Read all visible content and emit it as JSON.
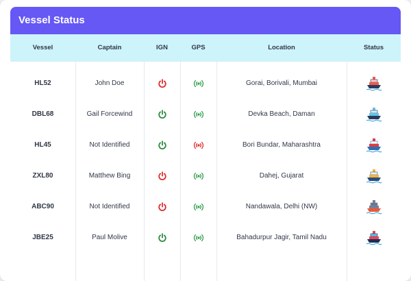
{
  "card": {
    "title": "Vessel Status"
  },
  "columns": [
    "Vessel",
    "Captain",
    "IGN",
    "GPS",
    "Location",
    "Status"
  ],
  "rows": [
    {
      "vessel": "HL52",
      "captain": "John Doe",
      "ign": "off",
      "gps": "ok",
      "location": "Gorai, Borivali, Mumbai",
      "ship_icon": "cruise-ship-icon"
    },
    {
      "vessel": "DBL68",
      "captain": "Gail Forcewind",
      "ign": "on",
      "gps": "ok",
      "location": "Devka Beach, Daman",
      "ship_icon": "ferry-icon"
    },
    {
      "vessel": "HL45",
      "captain": "Not Identified",
      "ign": "on",
      "gps": "alert",
      "location": "Bori Bundar, Maharashtra",
      "ship_icon": "passenger-ship-icon"
    },
    {
      "vessel": "ZXL80",
      "captain": "Matthew Bing",
      "ign": "off",
      "gps": "ok",
      "location": "Dahej, Gujarat",
      "ship_icon": "yacht-icon"
    },
    {
      "vessel": "ABC90",
      "captain": "Not Identified",
      "ign": "off",
      "gps": "ok",
      "location": "Nandawala, Delhi (NW)",
      "ship_icon": "cargo-ship-icon"
    },
    {
      "vessel": "JBE25",
      "captain": "Paul Molive",
      "ign": "on",
      "gps": "ok",
      "location": "Bahadurpur Jagir, Tamil Nadu",
      "ship_icon": "container-ship-icon"
    }
  ],
  "colors": {
    "header_bg": "#6558f5",
    "thead_bg": "#cdf3fb",
    "ign_on": "#2e8b3e",
    "ign_off": "#e02b2b",
    "gps_ok": "#2e9e4a",
    "gps_alert": "#e02b2b"
  }
}
